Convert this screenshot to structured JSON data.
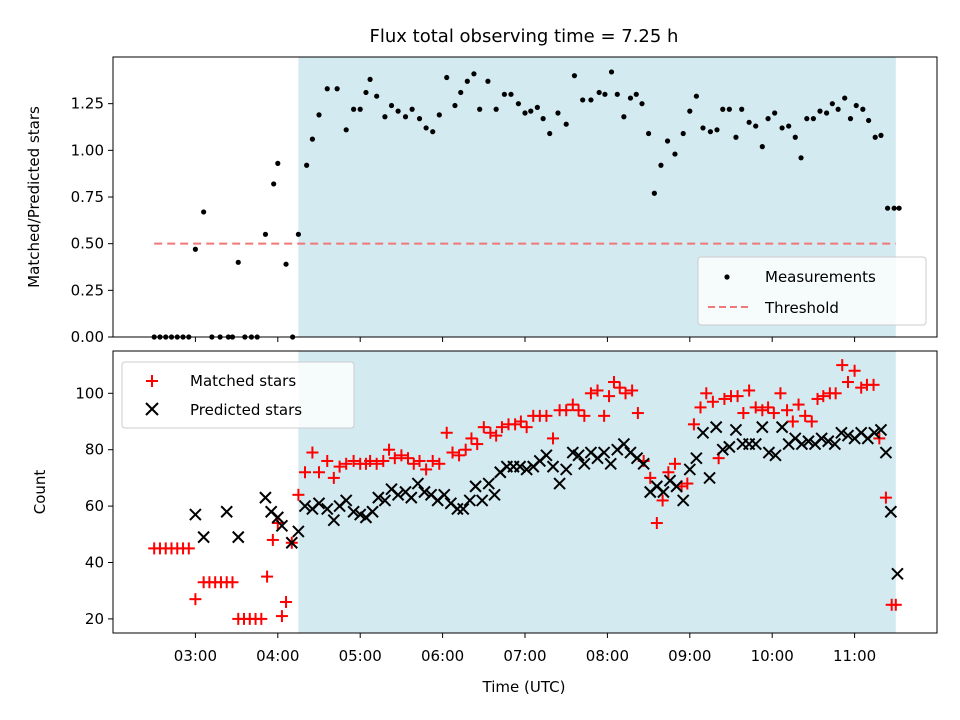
{
  "chart_data": [
    {
      "type": "scatter",
      "title": "Flux total observing time = 7.25 h",
      "ylabel": "Matched/Predicted stars",
      "xlim": [
        2.0,
        12.0
      ],
      "ylim": [
        0.0,
        1.5
      ],
      "yticks": [
        0.0,
        0.25,
        0.5,
        0.75,
        1.0,
        1.25
      ],
      "ytick_labels": [
        "0.00",
        "0.25",
        "0.50",
        "0.75",
        "1.00",
        "1.25"
      ],
      "shaded_region": [
        4.25,
        11.5
      ],
      "shade_color": "#d2eaf0",
      "legend": {
        "position": "lower-right",
        "entries": [
          "Measurements",
          "Threshold"
        ]
      },
      "threshold": {
        "name": "Threshold",
        "value": 0.5,
        "x_range": [
          2.5,
          11.5
        ],
        "color": "#f07878"
      },
      "series": [
        {
          "name": "Measurements",
          "color": "#000000",
          "x": [
            2.5,
            2.57,
            2.64,
            2.71,
            2.78,
            2.85,
            2.92,
            3.0,
            3.1,
            3.2,
            3.3,
            3.4,
            3.45,
            3.52,
            3.6,
            3.68,
            3.75,
            3.85,
            3.95,
            4.0,
            4.1,
            4.18,
            4.25,
            4.35,
            4.42,
            4.5,
            4.6,
            4.72,
            4.83,
            4.92,
            5.0,
            5.07,
            5.12,
            5.2,
            5.3,
            5.38,
            5.46,
            5.55,
            5.63,
            5.72,
            5.8,
            5.88,
            5.96,
            6.05,
            6.15,
            6.22,
            6.3,
            6.38,
            6.45,
            6.55,
            6.65,
            6.75,
            6.83,
            6.92,
            7.0,
            7.07,
            7.15,
            7.22,
            7.3,
            7.4,
            7.5,
            7.6,
            7.7,
            7.8,
            7.9,
            7.97,
            8.05,
            8.12,
            8.2,
            8.28,
            8.35,
            8.42,
            8.5,
            8.57,
            8.65,
            8.73,
            8.82,
            8.92,
            9.0,
            9.08,
            9.16,
            9.25,
            9.33,
            9.4,
            9.48,
            9.56,
            9.63,
            9.72,
            9.8,
            9.88,
            9.95,
            10.03,
            10.12,
            10.2,
            10.28,
            10.35,
            10.42,
            10.5,
            10.58,
            10.66,
            10.73,
            10.8,
            10.88,
            10.95,
            11.02,
            11.1,
            11.17,
            11.25,
            11.32,
            11.4,
            11.48,
            11.54
          ],
          "y": [
            0.0,
            0.0,
            0.0,
            0.0,
            0.0,
            0.0,
            0.0,
            0.47,
            0.67,
            0.0,
            0.0,
            0.0,
            0.0,
            0.4,
            0.0,
            0.0,
            0.0,
            0.55,
            0.82,
            0.93,
            0.39,
            0.0,
            0.55,
            0.92,
            1.06,
            1.19,
            1.33,
            1.33,
            1.11,
            1.22,
            1.22,
            1.31,
            1.38,
            1.29,
            1.18,
            1.24,
            1.21,
            1.18,
            1.22,
            1.17,
            1.12,
            1.1,
            1.19,
            1.39,
            1.24,
            1.31,
            1.37,
            1.41,
            1.22,
            1.37,
            1.22,
            1.3,
            1.3,
            1.25,
            1.2,
            1.21,
            1.23,
            1.17,
            1.09,
            1.2,
            1.14,
            1.4,
            1.27,
            1.27,
            1.31,
            1.3,
            1.42,
            1.3,
            1.18,
            1.28,
            1.3,
            1.25,
            1.09,
            0.77,
            0.92,
            1.05,
            0.98,
            1.09,
            1.21,
            1.29,
            1.12,
            1.1,
            1.11,
            1.22,
            1.22,
            1.07,
            1.22,
            1.15,
            1.13,
            1.02,
            1.17,
            1.2,
            1.12,
            1.13,
            1.07,
            0.96,
            1.17,
            1.17,
            1.21,
            1.2,
            1.25,
            1.22,
            1.28,
            1.17,
            1.24,
            1.22,
            1.16,
            1.07,
            1.08,
            0.69,
            0.69,
            0.69
          ]
        }
      ]
    },
    {
      "type": "scatter",
      "xlabel": "Time (UTC)",
      "ylabel": "Count",
      "xlim": [
        2.0,
        12.0
      ],
      "ylim": [
        15,
        115
      ],
      "xticks": [
        3,
        4,
        5,
        6,
        7,
        8,
        9,
        10,
        11
      ],
      "xtick_labels": [
        "03:00",
        "04:00",
        "05:00",
        "06:00",
        "07:00",
        "08:00",
        "09:00",
        "10:00",
        "11:00"
      ],
      "yticks": [
        20,
        40,
        60,
        80,
        100
      ],
      "ytick_labels": [
        "20",
        "40",
        "60",
        "80",
        "100"
      ],
      "shaded_region": [
        4.25,
        11.5
      ],
      "shade_color": "#d2eaf0",
      "legend": {
        "position": "upper-left",
        "entries": [
          "Matched stars",
          "Predicted stars"
        ]
      },
      "series": [
        {
          "name": "Matched stars",
          "marker": "plus",
          "color": "#ff0000",
          "x": [
            2.5,
            2.57,
            2.64,
            2.71,
            2.78,
            2.85,
            2.92,
            3.0,
            3.1,
            3.17,
            3.24,
            3.31,
            3.38,
            3.45,
            3.52,
            3.59,
            3.66,
            3.73,
            3.8,
            3.87,
            3.94,
            4.0,
            4.05,
            4.1,
            4.17,
            4.25,
            4.33,
            4.42,
            4.5,
            4.6,
            4.68,
            4.75,
            4.83,
            4.92,
            5.0,
            5.07,
            5.12,
            5.2,
            5.28,
            5.35,
            5.42,
            5.5,
            5.58,
            5.65,
            5.72,
            5.8,
            5.88,
            5.96,
            6.05,
            6.12,
            6.2,
            6.28,
            6.35,
            6.42,
            6.5,
            6.58,
            6.65,
            6.72,
            6.8,
            6.88,
            6.95,
            7.02,
            7.1,
            7.18,
            7.26,
            7.34,
            7.42,
            7.5,
            7.58,
            7.65,
            7.72,
            7.8,
            7.88,
            7.96,
            8.02,
            8.08,
            8.15,
            8.22,
            8.3,
            8.37,
            8.44,
            8.52,
            8.6,
            8.67,
            8.74,
            8.82,
            8.9,
            8.97,
            9.05,
            9.13,
            9.2,
            9.28,
            9.35,
            9.42,
            9.5,
            9.58,
            9.65,
            9.72,
            9.8,
            9.88,
            9.95,
            10.02,
            10.1,
            10.18,
            10.25,
            10.32,
            10.4,
            10.48,
            10.55,
            10.62,
            10.7,
            10.77,
            10.85,
            10.92,
            11.0,
            11.08,
            11.15,
            11.23,
            11.3,
            11.38,
            11.45,
            11.5
          ],
          "y": [
            45,
            45,
            45,
            45,
            45,
            45,
            45,
            27,
            33,
            33,
            33,
            33,
            33,
            33,
            20,
            20,
            20,
            20,
            20,
            35,
            48,
            54,
            21,
            26,
            47,
            64,
            72,
            79,
            72,
            76,
            70,
            74,
            75,
            76,
            75,
            75,
            76,
            75,
            76,
            80,
            77,
            78,
            77,
            75,
            76,
            73,
            76,
            75,
            86,
            79,
            78,
            80,
            84,
            82,
            88,
            86,
            85,
            88,
            89,
            89,
            90,
            88,
            92,
            92,
            92,
            84,
            94,
            94,
            96,
            94,
            92,
            100,
            101,
            92,
            99,
            104,
            102,
            100,
            101,
            93,
            76,
            70,
            54,
            62,
            72,
            75,
            67,
            68,
            89,
            95,
            100,
            97,
            77,
            98,
            99,
            99,
            93,
            101,
            95,
            94,
            95,
            93,
            100,
            94,
            90,
            96,
            92,
            90,
            98,
            99,
            100,
            100,
            110,
            104,
            108,
            102,
            103,
            103,
            84,
            63,
            25,
            25
          ]
        },
        {
          "name": "Predicted stars",
          "marker": "cross",
          "color": "#000000",
          "x": [
            3.0,
            3.1,
            3.38,
            3.52,
            3.85,
            3.92,
            4.0,
            4.05,
            4.17,
            4.25,
            4.33,
            4.42,
            4.5,
            4.6,
            4.68,
            4.75,
            4.83,
            4.92,
            5.0,
            5.07,
            5.15,
            5.22,
            5.3,
            5.38,
            5.46,
            5.55,
            5.62,
            5.7,
            5.78,
            5.86,
            5.94,
            6.02,
            6.1,
            6.18,
            6.25,
            6.33,
            6.4,
            6.48,
            6.56,
            6.63,
            6.7,
            6.78,
            6.86,
            6.94,
            7.02,
            7.1,
            7.18,
            7.26,
            7.34,
            7.42,
            7.5,
            7.58,
            7.65,
            7.72,
            7.8,
            7.88,
            7.96,
            8.04,
            8.12,
            8.2,
            8.28,
            8.36,
            8.44,
            8.52,
            8.6,
            8.68,
            8.76,
            8.84,
            8.92,
            9.0,
            9.08,
            9.16,
            9.24,
            9.32,
            9.4,
            9.48,
            9.56,
            9.64,
            9.72,
            9.8,
            9.88,
            9.96,
            10.04,
            10.12,
            10.2,
            10.28,
            10.36,
            10.44,
            10.52,
            10.6,
            10.68,
            10.76,
            10.84,
            10.92,
            11.0,
            11.08,
            11.16,
            11.24,
            11.32,
            11.38,
            11.44,
            11.52
          ],
          "y": [
            57,
            49,
            58,
            49,
            63,
            58,
            56,
            53,
            47,
            51,
            60,
            59,
            61,
            59,
            55,
            60,
            62,
            58,
            57,
            56,
            58,
            63,
            62,
            66,
            64,
            65,
            63,
            68,
            65,
            64,
            62,
            64,
            61,
            59,
            59,
            62,
            67,
            62,
            68,
            64,
            72,
            74,
            74,
            74,
            73,
            74,
            76,
            78,
            74,
            68,
            73,
            79,
            78,
            75,
            79,
            77,
            79,
            75,
            80,
            82,
            79,
            77,
            75,
            65,
            67,
            65,
            69,
            67,
            62,
            73,
            77,
            86,
            70,
            88,
            80,
            81,
            87,
            82,
            82,
            82,
            88,
            79,
            78,
            88,
            82,
            84,
            82,
            83,
            82,
            84,
            83,
            82,
            86,
            85,
            84,
            86,
            84,
            86,
            87,
            79,
            58,
            36
          ]
        }
      ]
    }
  ]
}
